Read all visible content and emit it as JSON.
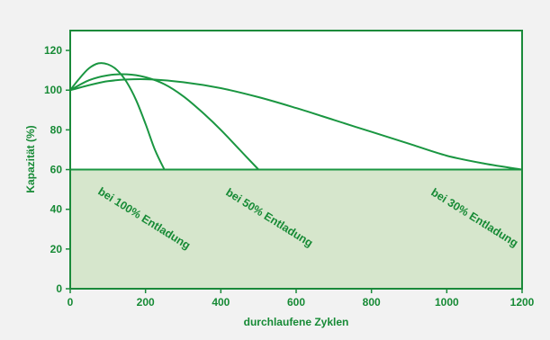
{
  "chart_data": {
    "type": "line",
    "title": "",
    "xlabel": "durchlaufene Zyklen",
    "ylabel": "Kapazität (%)",
    "xlim": [
      0,
      1200
    ],
    "ylim": [
      0,
      130
    ],
    "x_ticks": [
      0,
      200,
      400,
      600,
      800,
      1000,
      1200
    ],
    "y_ticks": [
      0,
      20,
      40,
      60,
      80,
      100,
      120
    ],
    "grid": false,
    "threshold": 60,
    "colors": {
      "line": "#1a9641",
      "axis": "#1a8a3a",
      "text": "#168a35",
      "shaded_region": "#d6e6cc",
      "plot_bg": "#ffffff",
      "page_bg": "#f2f2f2"
    },
    "series": [
      {
        "x": [
          0,
          25,
          50,
          75,
          100,
          125,
          150,
          175,
          200,
          225,
          250
        ],
        "y": [
          100,
          106,
          111,
          113.5,
          113,
          110,
          104,
          95,
          83,
          70,
          60
        ]
      },
      {
        "x": [
          0,
          50,
          100,
          150,
          200,
          250,
          300,
          350,
          400,
          450,
          500
        ],
        "y": [
          100,
          105,
          107.5,
          108,
          106.5,
          103,
          97,
          89,
          80,
          70,
          60
        ]
      },
      {
        "x": [
          0,
          100,
          200,
          300,
          400,
          500,
          600,
          700,
          800,
          900,
          1000,
          1100,
          1200
        ],
        "y": [
          100,
          104.5,
          105.5,
          104,
          101,
          96.5,
          91,
          85,
          79,
          73,
          67,
          63,
          60
        ]
      }
    ],
    "annotations": [
      {
        "text": "bei 100% Entladung"
      },
      {
        "text": "bei 50% Entladung"
      },
      {
        "text": "bei 30% Entladung"
      }
    ]
  }
}
